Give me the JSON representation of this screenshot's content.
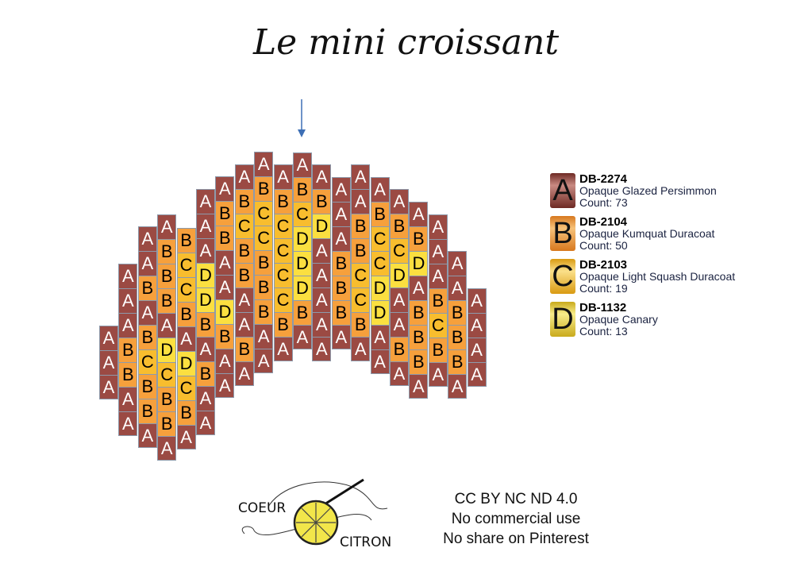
{
  "title": "Le mini croissant",
  "colors": {
    "A": "#9b4a43",
    "B": "#f6a03c",
    "C": "#f8bd2e",
    "D": "#fbdf40",
    "arrow": "#3d6fb5"
  },
  "pattern": {
    "columns": [
      "AAA",
      "AAABBAA",
      "AABABCBBA",
      "ABBBADCBBA",
      "BCCBADCBA",
      "AAADDBABAA",
      "ABBAADBAA",
      "ABCBBAABA",
      "ABCCBBBAA",
      "ABCCCCBA",
      "ABCDDDBA",
      "ABDAAAAA",
      "AAABBBA",
      "AABBCCBA",
      "ABCCDDAA",
      "ABCDAABA",
      "ABDABBBA",
      "AAABCBA",
      "AABBBA",
      "AAAA"
    ]
  },
  "legend": [
    {
      "letter": "A",
      "code": "DB-2274",
      "name": "Opaque Glazed Persimmon",
      "count": "Count: 73",
      "gradient": [
        "#c98a82",
        "#6e2a24"
      ]
    },
    {
      "letter": "B",
      "code": "DB-2104",
      "name": "Opaque Kumquat Duracoat",
      "count": "Count: 50",
      "gradient": [
        "#f7c27a",
        "#d7781e"
      ]
    },
    {
      "letter": "C",
      "code": "DB-2103",
      "name": "Opaque Light Squash Duracoat",
      "count": "Count: 19",
      "gradient": [
        "#fbe08a",
        "#d99a12"
      ]
    },
    {
      "letter": "D",
      "code": "DB-1132",
      "name": "Opaque Canary",
      "count": "Count: 13",
      "gradient": [
        "#f8ec8a",
        "#c9aa1c"
      ]
    }
  ],
  "logo": {
    "word1": "COEUR",
    "word2": "CITRON"
  },
  "license": [
    "CC BY NC ND 4.0",
    "No commercial use",
    "No share on Pinterest"
  ]
}
